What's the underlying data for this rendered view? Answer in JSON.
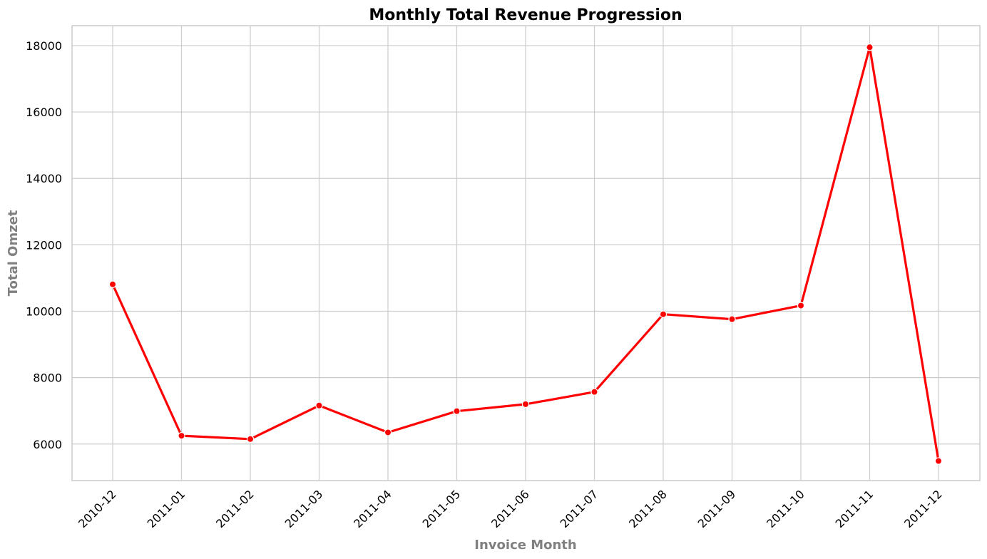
{
  "chart_data": {
    "type": "line",
    "title": "Monthly Total Revenue Progression",
    "xlabel": "Invoice Month",
    "ylabel": "Total Omzet",
    "categories": [
      "2010-12",
      "2011-01",
      "2011-02",
      "2011-03",
      "2011-04",
      "2011-05",
      "2011-06",
      "2011-07",
      "2011-08",
      "2011-09",
      "2011-10",
      "2011-11",
      "2011-12"
    ],
    "series": [
      {
        "values": [
          10810,
          6250,
          6150,
          7160,
          6350,
          6990,
          7200,
          7570,
          9910,
          9760,
          10170,
          17950,
          5490
        ],
        "color": "#ff0000"
      }
    ],
    "ylim": [
      4900,
      18600
    ],
    "yticks": [
      6000,
      8000,
      10000,
      12000,
      14000,
      16000,
      18000
    ],
    "ytick_labels": [
      "6000",
      "8000",
      "10000",
      "12000",
      "14000",
      "16000",
      "18000"
    ],
    "grid": true,
    "legend": "none",
    "colors": {
      "line": "#ff0000",
      "grid": "#cccccc",
      "axis_label": "#808080",
      "text": "#000000"
    }
  }
}
